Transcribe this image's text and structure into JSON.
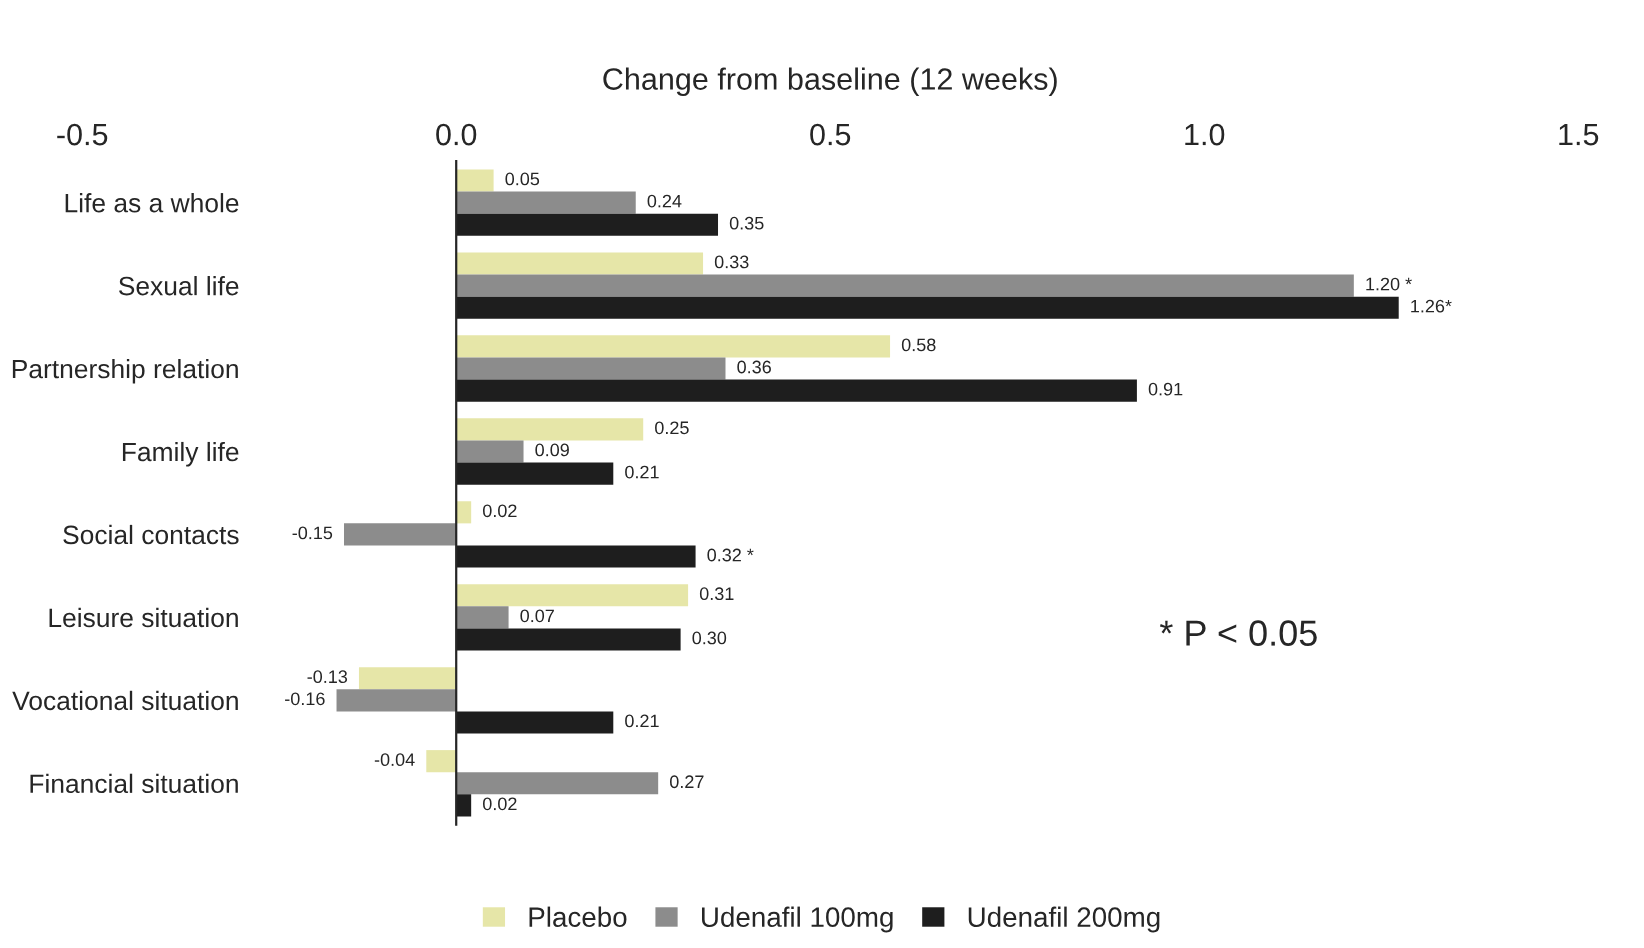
{
  "chart_data": {
    "type": "bar",
    "orientation": "horizontal",
    "xlabel": "Change from baseline (12 weeks)",
    "categories": [
      "Life as a whole",
      "Sexual life",
      "Partnership relation",
      "Family life",
      "Social contacts",
      "Leisure situation",
      "Vocational situation",
      "Financial situation"
    ],
    "series": [
      {
        "name": "Placebo",
        "color": "#e6e6a8",
        "values": [
          0.05,
          0.33,
          0.58,
          0.25,
          0.02,
          0.31,
          -0.13,
          -0.04
        ],
        "value_labels": [
          "0.05",
          "0.33",
          "0.58",
          "0.25",
          "0.02",
          "0.31",
          "-0.13",
          "-0.04"
        ]
      },
      {
        "name": "Udenafil 100mg",
        "color": "#8c8c8c",
        "values": [
          0.24,
          1.2,
          0.36,
          0.09,
          -0.15,
          0.07,
          -0.16,
          0.27
        ],
        "value_labels": [
          "0.24",
          "1.20 *",
          "0.36",
          "0.09",
          "-0.15",
          "0.07",
          "-0.16",
          "0.27"
        ]
      },
      {
        "name": "Udenafil 200mg",
        "color": "#1e1e1e",
        "values": [
          0.35,
          1.26,
          0.91,
          0.21,
          0.32,
          0.3,
          0.21,
          0.02
        ],
        "value_labels": [
          "0.35",
          "1.26*",
          "0.91",
          "0.21",
          "0.32 *",
          "0.30",
          "0.21",
          "0.02"
        ]
      }
    ],
    "xlim": [
      -0.5,
      1.5
    ],
    "xticks": [
      -0.5,
      {
        "value": 0,
        "label": "0.0"
      },
      0.5,
      {
        "value": 1,
        "label": "1.0"
      },
      1.5
    ],
    "annotations": [
      {
        "text": "* P < 0.05"
      }
    ],
    "legend": "bottom"
  }
}
